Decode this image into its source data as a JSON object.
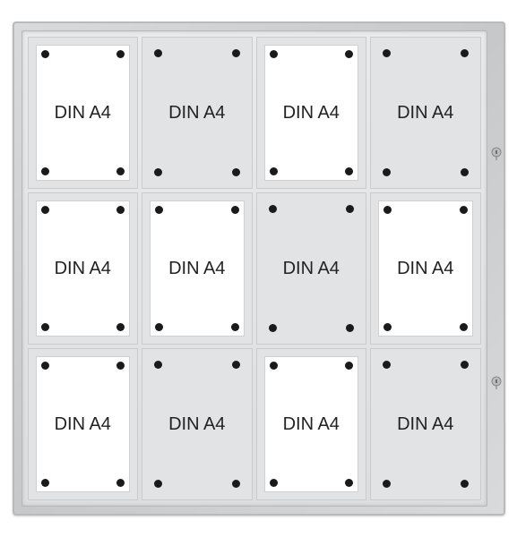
{
  "showcase": {
    "rows": 3,
    "cols": 4,
    "cells": [
      {
        "label": "DIN A4",
        "paper": true
      },
      {
        "label": "DIN A4",
        "paper": false
      },
      {
        "label": "DIN A4",
        "paper": true
      },
      {
        "label": "DIN A4",
        "paper": false
      },
      {
        "label": "DIN A4",
        "paper": true
      },
      {
        "label": "DIN A4",
        "paper": true
      },
      {
        "label": "DIN A4",
        "paper": false
      },
      {
        "label": "DIN A4",
        "paper": true
      },
      {
        "label": "DIN A4",
        "paper": true
      },
      {
        "label": "DIN A4",
        "paper": false
      },
      {
        "label": "DIN A4",
        "paper": true
      },
      {
        "label": "DIN A4",
        "paper": false
      }
    ],
    "frame_color": "#d9dadc",
    "inner_color": "#e2e3e4",
    "paper_color": "#ffffff",
    "magnet_color": "#1a1a1a",
    "label_color": "#222222",
    "label_fontsize": 20
  }
}
